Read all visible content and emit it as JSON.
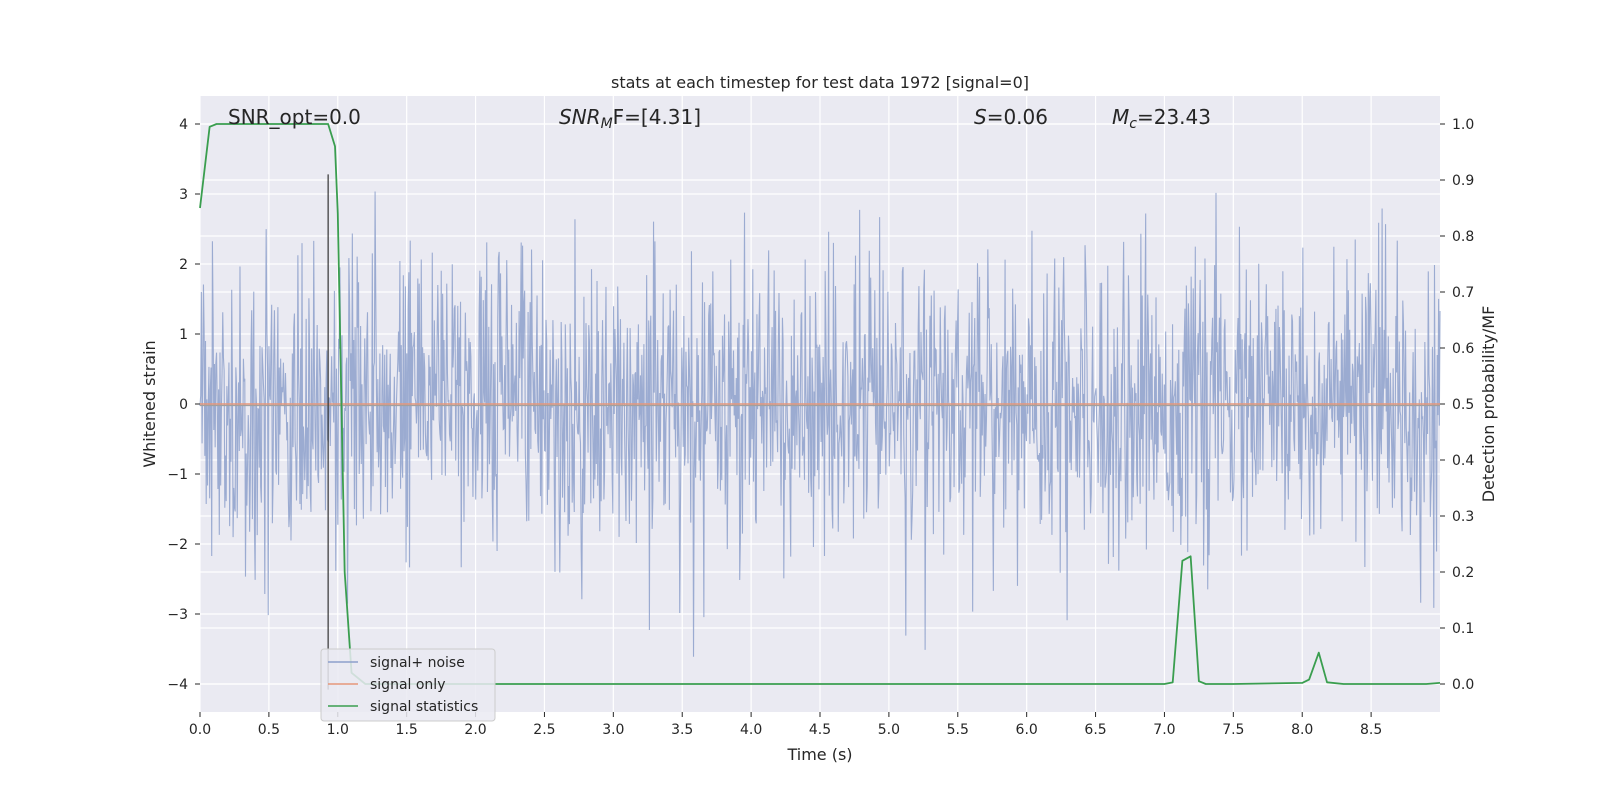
{
  "chart_data": {
    "type": "line",
    "title": "stats at each timestep for test data 1972 [signal=0]",
    "xlabel": "Time (s)",
    "ylabel_left": "Whitened strain",
    "ylabel_right": "Detection probability/MF",
    "xlim": [
      0.0,
      9.0
    ],
    "ylim_left": [
      -4.4,
      4.4
    ],
    "ylim_right": [
      -0.05,
      1.05
    ],
    "x_ticks": [
      "0.0",
      "0.5",
      "1.0",
      "1.5",
      "2.0",
      "2.5",
      "3.0",
      "3.5",
      "4.0",
      "4.5",
      "5.0",
      "5.5",
      "6.0",
      "6.5",
      "7.0",
      "7.5",
      "8.0",
      "8.5"
    ],
    "x_tick_values": [
      0.0,
      0.5,
      1.0,
      1.5,
      2.0,
      2.5,
      3.0,
      3.5,
      4.0,
      4.5,
      5.0,
      5.5,
      6.0,
      6.5,
      7.0,
      7.5,
      8.0,
      8.5
    ],
    "y_left_ticks": [
      "4",
      "3",
      "2",
      "1",
      "0",
      "−1",
      "−2",
      "−3",
      "−4"
    ],
    "y_left_tick_values": [
      4,
      3,
      2,
      1,
      0,
      -1,
      -2,
      -3,
      -4
    ],
    "y_right_ticks": [
      "1.0",
      "0.9",
      "0.8",
      "0.7",
      "0.6",
      "0.5",
      "0.4",
      "0.3",
      "0.2",
      "0.1",
      "0.0"
    ],
    "y_right_tick_values": [
      1.0,
      0.9,
      0.8,
      0.7,
      0.6,
      0.5,
      0.4,
      0.3,
      0.2,
      0.1,
      0.0
    ],
    "grid": true,
    "legend_position": "lower-left",
    "annotations": {
      "snr_opt": "SNR_opt=0.0",
      "snr_mf_main": "SNR",
      "snr_mf_sub": "M",
      "snr_mf_rest": "F=[4.31]",
      "s_main": "S",
      "s_rest": "=0.06",
      "mc_main": "M",
      "mc_sub": "c",
      "mc_rest": "=23.43"
    },
    "vertical_marker_x": 0.93,
    "series": [
      {
        "name": "signal+ noise",
        "axis": "left",
        "color": "#8da0cb",
        "kind": "noise",
        "n_samples": 1800,
        "amplitude_std": 1.0
      },
      {
        "name": "signal only",
        "axis": "left",
        "color": "#e5967a",
        "x": [
          0.0,
          9.0
        ],
        "y": [
          0.0,
          0.0
        ]
      },
      {
        "name": "signal statistics",
        "axis": "right",
        "color": "#3a9e4f",
        "x": [
          0.0,
          0.07,
          0.12,
          0.2,
          0.4,
          0.6,
          0.8,
          0.93,
          0.98,
          1.0,
          1.05,
          1.1,
          1.2,
          1.5,
          2.0,
          3.0,
          4.0,
          5.0,
          6.0,
          6.5,
          7.0,
          7.06,
          7.13,
          7.19,
          7.25,
          7.3,
          7.5,
          8.0,
          8.05,
          8.12,
          8.18,
          8.3,
          8.5,
          8.9,
          9.0
        ],
        "y": [
          0.85,
          0.995,
          1.0,
          1.0,
          1.0,
          1.0,
          1.0,
          1.0,
          0.96,
          0.84,
          0.2,
          0.02,
          0.0,
          0.0,
          0.0,
          0.0,
          0.0,
          0.0,
          0.0,
          0.0,
          0.0,
          0.003,
          0.22,
          0.228,
          0.005,
          0.0,
          0.0,
          0.002,
          0.008,
          0.056,
          0.003,
          0.0,
          0.0,
          0.0,
          0.002
        ]
      }
    ]
  }
}
